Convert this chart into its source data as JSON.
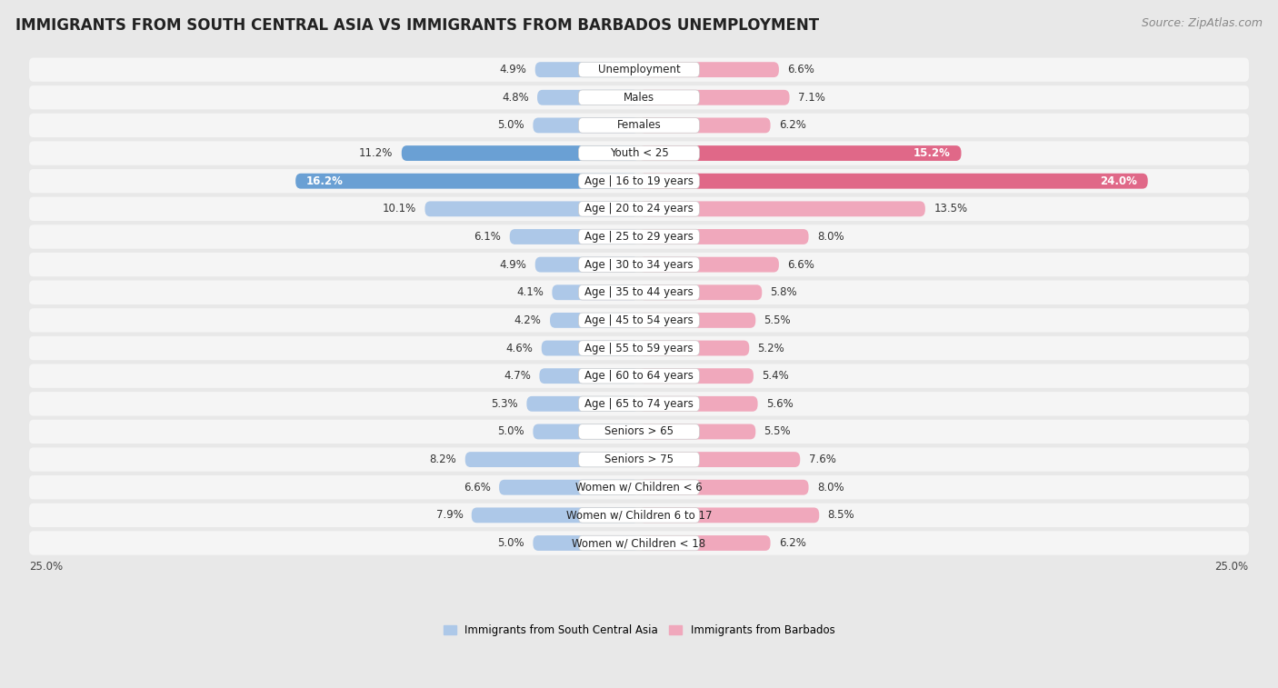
{
  "title": "IMMIGRANTS FROM SOUTH CENTRAL ASIA VS IMMIGRANTS FROM BARBADOS UNEMPLOYMENT",
  "source": "Source: ZipAtlas.com",
  "categories": [
    "Unemployment",
    "Males",
    "Females",
    "Youth < 25",
    "Age | 16 to 19 years",
    "Age | 20 to 24 years",
    "Age | 25 to 29 years",
    "Age | 30 to 34 years",
    "Age | 35 to 44 years",
    "Age | 45 to 54 years",
    "Age | 55 to 59 years",
    "Age | 60 to 64 years",
    "Age | 65 to 74 years",
    "Seniors > 65",
    "Seniors > 75",
    "Women w/ Children < 6",
    "Women w/ Children 6 to 17",
    "Women w/ Children < 18"
  ],
  "left_values": [
    4.9,
    4.8,
    5.0,
    11.2,
    16.2,
    10.1,
    6.1,
    4.9,
    4.1,
    4.2,
    4.6,
    4.7,
    5.3,
    5.0,
    8.2,
    6.6,
    7.9,
    5.0
  ],
  "right_values": [
    6.6,
    7.1,
    6.2,
    15.2,
    24.0,
    13.5,
    8.0,
    6.6,
    5.8,
    5.5,
    5.2,
    5.4,
    5.6,
    5.5,
    7.6,
    8.0,
    8.5,
    6.2
  ],
  "left_color": "#adc8e8",
  "right_color": "#f0a8bc",
  "left_highlight": "#6aa0d4",
  "right_highlight": "#e06888",
  "highlight_rows": [
    3,
    4
  ],
  "xlim": 25.0,
  "bg_color": "#e8e8e8",
  "row_bg": "#f5f5f5",
  "legend_left": "Immigrants from South Central Asia",
  "legend_right": "Immigrants from Barbados",
  "title_fontsize": 12,
  "source_fontsize": 9,
  "label_fontsize": 8.5,
  "value_fontsize": 8.5,
  "bar_height": 0.55
}
